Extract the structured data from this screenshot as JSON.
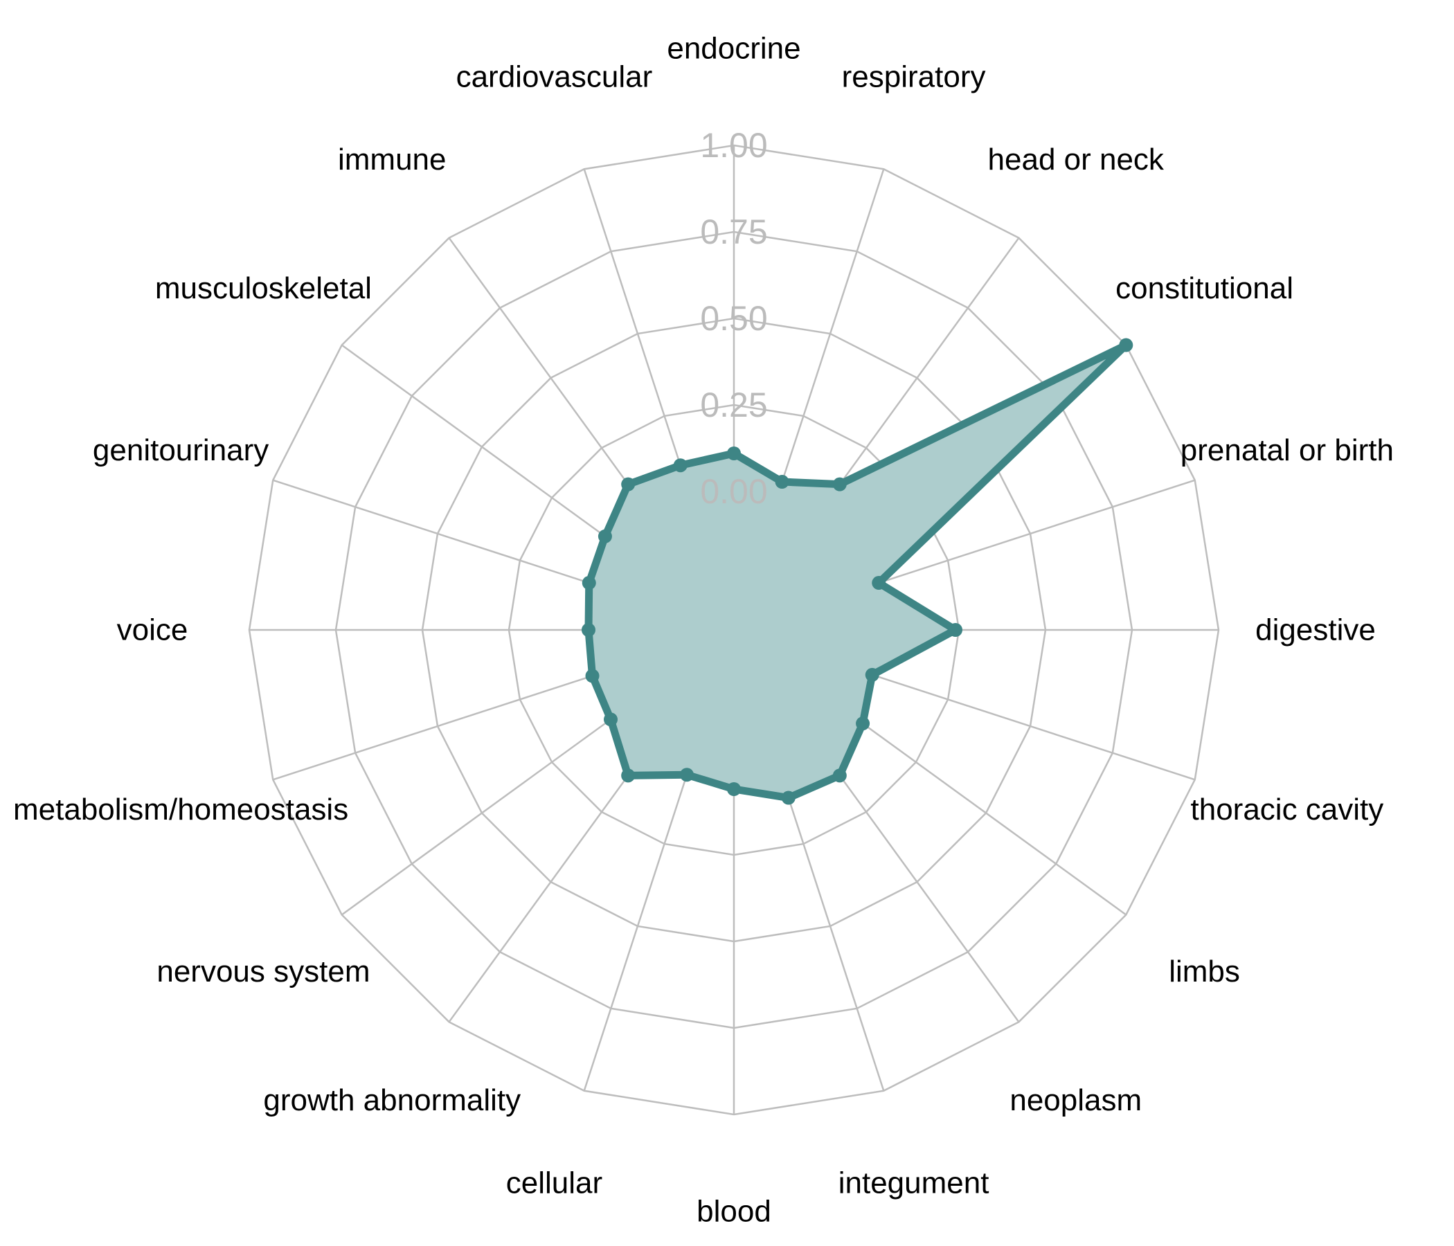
{
  "chart_data": {
    "type": "radar",
    "categories": [
      "endocrine",
      "respiratory",
      "head or neck",
      "constitutional",
      "prenatal or birth",
      "digestive",
      "thoracic cavity",
      "limbs",
      "neoplasm",
      "integument",
      "blood",
      "cellular",
      "growth abnormality",
      "nervous system",
      "metabolism/homeostasis",
      "voice",
      "genitourinary",
      "musculoskeletal",
      "immune",
      "cardiovascular"
    ],
    "series": [
      {
        "values": [
          0.11,
          0.05,
          0.12,
          1.0,
          0.04,
          0.24,
          0.02,
          0.06,
          0.12,
          0.11,
          0.06,
          0.04,
          0.12,
          0.04,
          0.03,
          0.02,
          0.04,
          0.06,
          0.12,
          0.1
        ]
      }
    ],
    "r_ticks": [
      0.0,
      0.25,
      0.5,
      0.75,
      1.0
    ],
    "r_tick_labels": [
      "0.00",
      "0.25",
      "0.50",
      "0.75",
      "1.00"
    ],
    "rlim": [
      -0.4,
      1.0
    ],
    "grid": true,
    "grid_shape": "polygon",
    "colors": {
      "line": "#3e8585",
      "fill": "#adcdcd",
      "grid": "#bdbdbd",
      "tick_label": "#bbbbbb",
      "label": "#000000"
    }
  }
}
